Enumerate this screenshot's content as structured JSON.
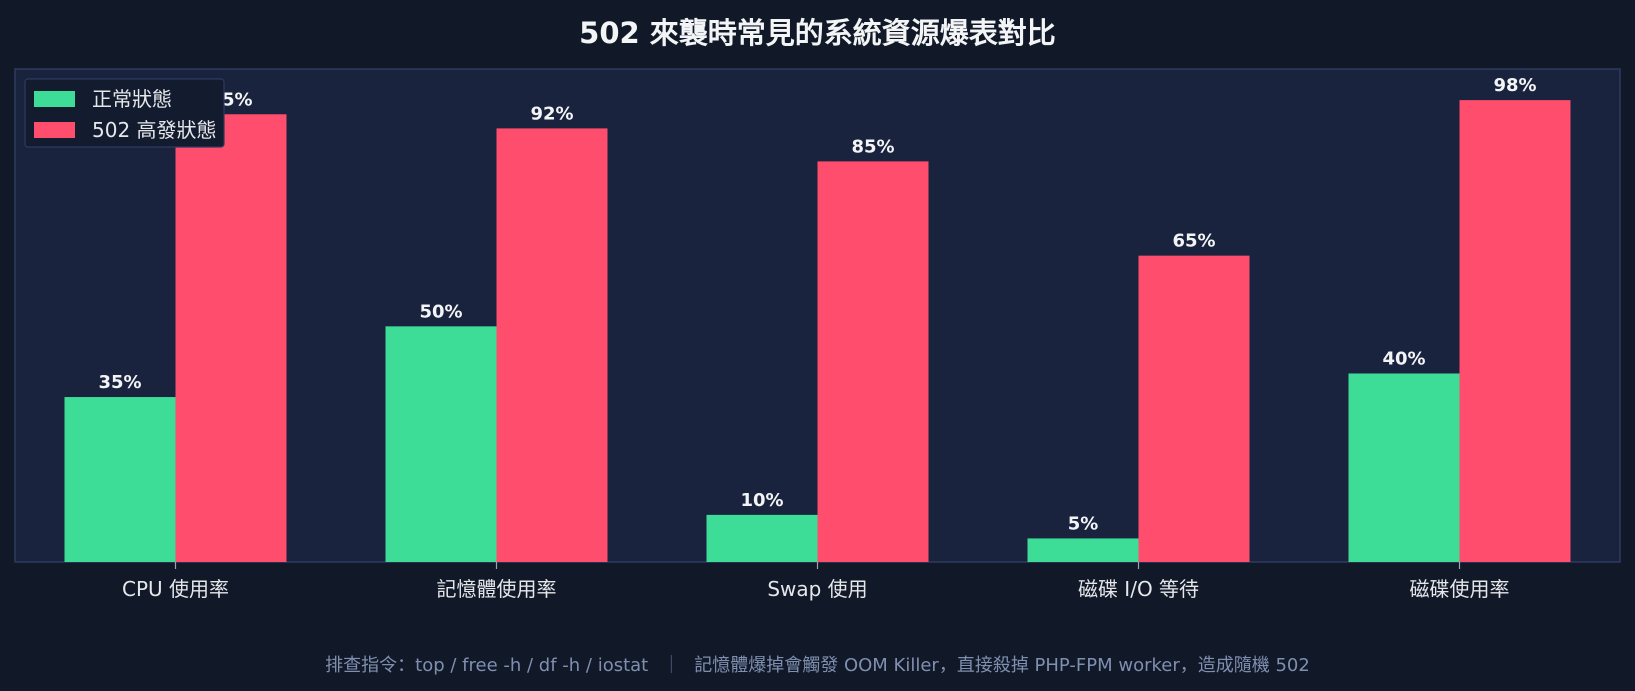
{
  "chart_data": {
    "type": "bar",
    "title": "502 來襲時常見的系統資源爆表對比",
    "categories": [
      "CPU 使用率",
      "記憶體使用率",
      "Swap 使用",
      "磁碟 I/O 等待",
      "磁碟使用率"
    ],
    "series": [
      {
        "name": "正常狀態",
        "values": [
          35,
          50,
          10,
          5,
          40
        ],
        "color": "#3ddc97"
      },
      {
        "name": "502 高發狀態",
        "values": [
          95,
          92,
          85,
          65,
          98
        ],
        "color": "#ff4d6d"
      }
    ],
    "value_suffix": "%",
    "ylim": [
      0,
      100
    ],
    "legend_position": "top-left",
    "grid": false
  },
  "footnote": {
    "left": "排查指令：top / free -h / df -h / iostat",
    "separator": "｜",
    "right": "記憶體爆掉會觸發 OOM Killer，直接殺掉 PHP-FPM worker，造成隨機 502"
  },
  "colors": {
    "background": "#111827",
    "plot_background": "#1a233d",
    "plot_border": "#2e3b5e",
    "text": "#e5e7eb"
  }
}
